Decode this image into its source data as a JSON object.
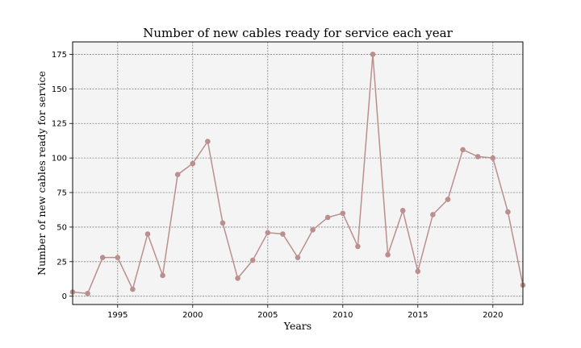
{
  "chart_data": {
    "type": "line",
    "title": "Number of new cables ready for service each year",
    "xlabel": "Years",
    "ylabel": "Number of new cables ready for service",
    "xlim": [
      1992,
      2022
    ],
    "ylim": [
      -6,
      184
    ],
    "xticks": [
      1995,
      2000,
      2005,
      2010,
      2015,
      2020
    ],
    "yticks": [
      0,
      25,
      50,
      75,
      100,
      125,
      150,
      175
    ],
    "grid": true,
    "colors": {
      "line": "#bc8f8f",
      "marker": "#bc8f8f",
      "plot_bg": "#f4f4f4"
    },
    "series": [
      {
        "x": [
          1992,
          1993,
          1994,
          1995,
          1996,
          1997,
          1998,
          1999,
          2000,
          2001,
          2002,
          2003,
          2004,
          2005,
          2006,
          2007,
          2008,
          2009,
          2010,
          2011,
          2012,
          2013,
          2014,
          2015,
          2016,
          2017,
          2018,
          2019,
          2020,
          2021,
          2022
        ],
        "values": [
          3,
          2,
          28,
          28,
          5,
          45,
          15,
          88,
          96,
          112,
          53,
          13,
          26,
          46,
          45,
          28,
          48,
          57,
          60,
          36,
          175,
          30,
          62,
          18,
          59,
          70,
          106,
          101,
          100,
          61,
          8
        ]
      }
    ]
  }
}
